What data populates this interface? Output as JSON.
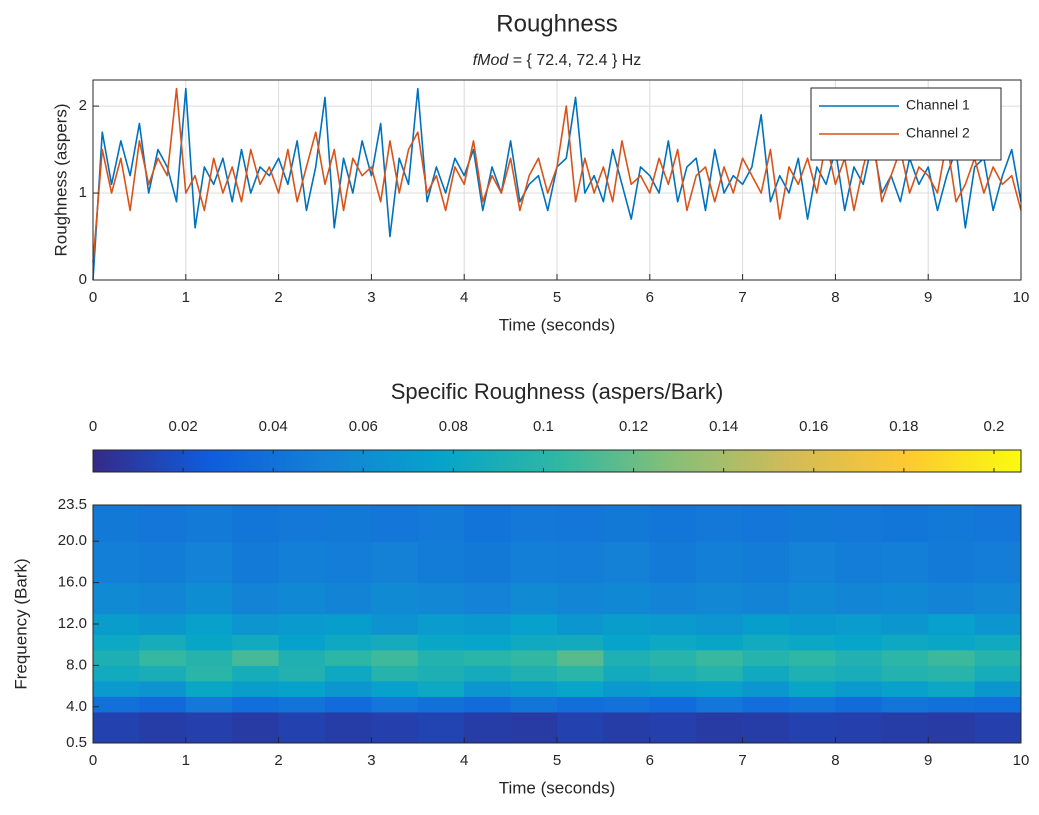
{
  "chart_data": [
    {
      "type": "line",
      "title": "Roughness",
      "subtitle_italic": "fMod",
      "subtitle": " = { 72.4, 72.4 } Hz",
      "xlabel": "Time (seconds)",
      "ylabel": "Roughness (aspers)",
      "x": [
        0,
        0.1,
        0.2,
        0.3,
        0.4,
        0.5,
        0.6,
        0.7,
        0.8,
        0.9,
        1,
        1.1,
        1.2,
        1.3,
        1.4,
        1.5,
        1.6,
        1.7,
        1.8,
        1.9,
        2,
        2.1,
        2.2,
        2.3,
        2.4,
        2.5,
        2.6,
        2.7,
        2.8,
        2.9,
        3,
        3.1,
        3.2,
        3.3,
        3.4,
        3.5,
        3.6,
        3.7,
        3.8,
        3.9,
        4,
        4.1,
        4.2,
        4.3,
        4.4,
        4.5,
        4.6,
        4.7,
        4.8,
        4.9,
        5,
        5.1,
        5.2,
        5.3,
        5.4,
        5.5,
        5.6,
        5.7,
        5.8,
        5.9,
        6,
        6.1,
        6.2,
        6.3,
        6.4,
        6.5,
        6.6,
        6.7,
        6.8,
        6.9,
        7,
        7.1,
        7.2,
        7.3,
        7.4,
        7.5,
        7.6,
        7.7,
        7.8,
        7.9,
        8,
        8.1,
        8.2,
        8.3,
        8.4,
        8.5,
        8.6,
        8.7,
        8.8,
        8.9,
        9,
        9.1,
        9.2,
        9.3,
        9.4,
        9.5,
        9.6,
        9.7,
        9.8,
        9.9,
        10
      ],
      "series": [
        {
          "name": "Channel 1",
          "color": "#0072bd",
          "values": [
            0,
            1.7,
            1.1,
            1.6,
            1.2,
            1.8,
            1.0,
            1.5,
            1.3,
            0.9,
            2.2,
            0.6,
            1.3,
            1.1,
            1.4,
            0.9,
            1.5,
            1.0,
            1.3,
            1.2,
            1.4,
            1.1,
            1.6,
            0.8,
            1.3,
            2.1,
            0.6,
            1.4,
            1.0,
            1.6,
            1.2,
            1.8,
            0.5,
            1.4,
            1.1,
            2.2,
            0.9,
            1.3,
            1.0,
            1.4,
            1.2,
            1.5,
            0.8,
            1.3,
            1.0,
            1.6,
            0.9,
            1.1,
            1.2,
            0.8,
            1.3,
            1.4,
            2.1,
            1.0,
            1.2,
            0.9,
            1.5,
            1.1,
            0.7,
            1.3,
            1.2,
            1.0,
            1.6,
            0.9,
            1.3,
            1.4,
            0.8,
            1.5,
            1.0,
            1.2,
            1.1,
            1.3,
            1.9,
            0.9,
            1.2,
            1.0,
            1.4,
            0.7,
            1.3,
            1.1,
            1.5,
            0.8,
            1.3,
            1.1,
            1.6,
            1.0,
            1.2,
            0.9,
            1.4,
            1.1,
            1.3,
            0.8,
            1.2,
            1.5,
            0.6,
            1.3,
            1.4,
            0.8,
            1.2,
            1.5,
            0.9
          ]
        },
        {
          "name": "Channel 2",
          "color": "#d95319",
          "values": [
            0.2,
            1.5,
            1.0,
            1.4,
            0.8,
            1.6,
            1.1,
            1.4,
            1.2,
            2.2,
            1.0,
            1.2,
            0.8,
            1.4,
            1.0,
            1.3,
            0.9,
            1.5,
            1.1,
            1.3,
            1.0,
            1.5,
            0.9,
            1.3,
            1.7,
            1.1,
            1.5,
            0.8,
            1.4,
            1.2,
            1.3,
            0.9,
            1.6,
            1.0,
            1.5,
            1.7,
            1.0,
            1.2,
            0.8,
            1.3,
            1.1,
            1.6,
            0.9,
            1.2,
            1.0,
            1.4,
            0.8,
            1.2,
            1.4,
            1.0,
            1.3,
            2.0,
            0.9,
            1.4,
            1.0,
            1.3,
            0.9,
            1.6,
            1.1,
            1.2,
            1.0,
            1.4,
            1.1,
            1.5,
            0.8,
            1.2,
            1.3,
            0.9,
            1.3,
            1.0,
            1.4,
            1.2,
            1.0,
            1.5,
            0.7,
            1.3,
            1.1,
            1.4,
            1.0,
            1.6,
            1.1,
            1.4,
            0.8,
            1.3,
            1.7,
            0.9,
            1.2,
            1.5,
            1.0,
            1.3,
            1.2,
            1.0,
            1.6,
            0.9,
            1.1,
            1.4,
            1.0,
            1.3,
            1.1,
            1.2,
            0.8
          ]
        }
      ],
      "xlim": [
        0,
        10
      ],
      "xticks": [
        0,
        1,
        2,
        3,
        4,
        5,
        6,
        7,
        8,
        9,
        10
      ],
      "ylim": [
        0,
        2.3
      ],
      "yticks": [
        0,
        1,
        2
      ],
      "grid": true,
      "legend": "northeast"
    },
    {
      "type": "heatmap",
      "title": "Specific Roughness (aspers/Bark)",
      "xlabel": "Time (seconds)",
      "ylabel": "Frequency (Bark)",
      "colormap": "parula",
      "clim": [
        0,
        0.206
      ],
      "cticks": [
        0,
        0.02,
        0.04,
        0.06,
        0.08,
        0.1,
        0.12,
        0.14,
        0.16,
        0.18,
        0.2
      ],
      "x_bins": [
        0,
        0.5,
        1,
        1.5,
        2,
        2.5,
        3,
        3.5,
        4,
        4.5,
        5,
        5.5,
        6,
        6.5,
        7,
        7.5,
        8,
        8.5,
        9,
        9.5,
        10
      ],
      "y_bins": [
        0.5,
        3.5,
        5,
        6.5,
        8,
        9.5,
        11,
        13,
        16,
        20,
        23.5
      ],
      "z": [
        [
          0.012,
          0.01,
          0.011,
          0.009,
          0.012,
          0.01,
          0.011,
          0.013,
          0.01,
          0.009,
          0.012,
          0.01,
          0.011,
          0.009,
          0.01,
          0.012,
          0.011,
          0.01,
          0.009,
          0.011
        ],
        [
          0.04,
          0.035,
          0.045,
          0.038,
          0.042,
          0.036,
          0.044,
          0.04,
          0.037,
          0.043,
          0.039,
          0.041,
          0.036,
          0.044,
          0.038,
          0.042,
          0.037,
          0.043,
          0.04,
          0.038
        ],
        [
          0.07,
          0.065,
          0.08,
          0.072,
          0.076,
          0.068,
          0.074,
          0.082,
          0.066,
          0.071,
          0.078,
          0.069,
          0.073,
          0.075,
          0.067,
          0.079,
          0.07,
          0.074,
          0.081,
          0.068
        ],
        [
          0.085,
          0.09,
          0.1,
          0.088,
          0.095,
          0.083,
          0.098,
          0.092,
          0.087,
          0.094,
          0.1,
          0.086,
          0.091,
          0.097,
          0.084,
          0.093,
          0.089,
          0.096,
          0.099,
          0.088
        ],
        [
          0.092,
          0.105,
          0.098,
          0.11,
          0.094,
          0.102,
          0.108,
          0.096,
          0.1,
          0.104,
          0.115,
          0.093,
          0.099,
          0.106,
          0.097,
          0.103,
          0.095,
          0.101,
          0.107,
          0.098
        ],
        [
          0.082,
          0.088,
          0.079,
          0.085,
          0.076,
          0.083,
          0.087,
          0.08,
          0.078,
          0.084,
          0.086,
          0.077,
          0.082,
          0.079,
          0.085,
          0.081,
          0.078,
          0.083,
          0.08,
          0.084
        ],
        [
          0.072,
          0.068,
          0.075,
          0.066,
          0.07,
          0.073,
          0.065,
          0.071,
          0.069,
          0.074,
          0.067,
          0.072,
          0.07,
          0.066,
          0.073,
          0.069,
          0.071,
          0.068,
          0.074,
          0.067
        ],
        [
          0.058,
          0.055,
          0.06,
          0.053,
          0.057,
          0.054,
          0.059,
          0.056,
          0.052,
          0.058,
          0.055,
          0.057,
          0.054,
          0.056,
          0.053,
          0.059,
          0.055,
          0.057,
          0.054,
          0.056
        ],
        [
          0.05,
          0.048,
          0.052,
          0.047,
          0.05,
          0.049,
          0.051,
          0.048,
          0.046,
          0.05,
          0.049,
          0.051,
          0.047,
          0.05,
          0.048,
          0.052,
          0.049,
          0.05,
          0.047,
          0.049
        ],
        [
          0.046,
          0.044,
          0.047,
          0.043,
          0.045,
          0.046,
          0.044,
          0.047,
          0.042,
          0.045,
          0.044,
          0.046,
          0.043,
          0.045,
          0.044,
          0.046,
          0.045,
          0.043,
          0.046,
          0.044
        ]
      ],
      "xlim": [
        0,
        10
      ],
      "xticks": [
        0,
        1,
        2,
        3,
        4,
        5,
        6,
        7,
        8,
        9,
        10
      ],
      "ylim": [
        0.5,
        23.5
      ],
      "yticks": [
        {
          "value": 0.5,
          "label": "0.5"
        },
        {
          "value": 4,
          "label": "4.0"
        },
        {
          "value": 8,
          "label": "8.0"
        },
        {
          "value": 12,
          "label": "12.0"
        },
        {
          "value": 16,
          "label": "16.0"
        },
        {
          "value": 20,
          "label": "20.0"
        },
        {
          "value": 23.5,
          "label": "23.5"
        }
      ]
    }
  ]
}
